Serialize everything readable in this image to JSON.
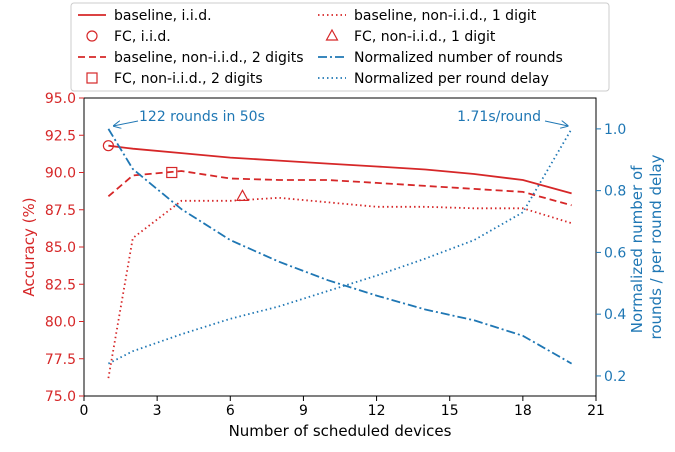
{
  "chart_data": {
    "type": "line",
    "title": "",
    "xlabel": "Number of scheduled devices",
    "ylabel_left": "Accuracy (%)",
    "ylabel_right_lines": [
      "Normalized number of",
      "rounds / per round delay"
    ],
    "xlim": [
      0,
      21
    ],
    "ylim_left": [
      75.0,
      95.0
    ],
    "ylim_right": [
      0.135,
      1.1
    ],
    "x_ticks": [
      0,
      3,
      6,
      9,
      12,
      15,
      18,
      21
    ],
    "x_tick_labels": [
      "0",
      "3",
      "6",
      "9",
      "12",
      "15",
      "18",
      "21"
    ],
    "y_left_ticks": [
      75.0,
      77.5,
      80.0,
      82.5,
      85.0,
      87.5,
      90.0,
      92.5,
      95.0
    ],
    "y_left_tick_labels": [
      "75.0",
      "77.5",
      "80.0",
      "82.5",
      "85.0",
      "87.5",
      "90.0",
      "92.5",
      "95.0"
    ],
    "y_right_ticks": [
      0.2,
      0.4,
      0.6,
      0.8,
      1.0
    ],
    "y_right_tick_labels": [
      "0.2",
      "0.4",
      "0.6",
      "0.8",
      "1.0"
    ],
    "grid": false,
    "legend_position": "top",
    "colors": {
      "accuracy": "#d62728",
      "rounds": "#1f77b4"
    },
    "series": [
      {
        "name": "baseline, i.i.d.",
        "axis": "left",
        "style": "solid",
        "color": "#d62728",
        "x": [
          1,
          2,
          4,
          6,
          8,
          10,
          12,
          14,
          16,
          18,
          20
        ],
        "y": [
          91.8,
          91.6,
          91.3,
          91.0,
          90.8,
          90.6,
          90.4,
          90.2,
          89.9,
          89.5,
          88.6
        ]
      },
      {
        "name": "baseline, non-i.i.d., 2 digits",
        "axis": "left",
        "style": "dashed",
        "color": "#d62728",
        "x": [
          1,
          2,
          4,
          6,
          8,
          10,
          12,
          14,
          16,
          18,
          20
        ],
        "y": [
          88.4,
          89.8,
          90.1,
          89.6,
          89.5,
          89.5,
          89.3,
          89.1,
          88.9,
          88.7,
          87.8
        ]
      },
      {
        "name": "baseline, non-i.i.d., 1 digit",
        "axis": "left",
        "style": "dotted",
        "color": "#d62728",
        "x": [
          1,
          2,
          4,
          6,
          8,
          10,
          12,
          14,
          16,
          18,
          20
        ],
        "y": [
          76.2,
          85.6,
          88.1,
          88.1,
          88.3,
          88.0,
          87.7,
          87.7,
          87.6,
          87.6,
          86.6
        ]
      },
      {
        "name": "Normalized number of rounds",
        "axis": "right",
        "style": "dashdot",
        "color": "#1f77b4",
        "x": [
          1,
          2,
          4,
          6,
          8,
          10,
          12,
          14,
          16,
          18,
          20
        ],
        "y": [
          1.0,
          0.87,
          0.74,
          0.64,
          0.57,
          0.51,
          0.46,
          0.415,
          0.38,
          0.33,
          0.24
        ]
      },
      {
        "name": "Normalized per round delay",
        "axis": "right",
        "style": "dotted",
        "color": "#1f77b4",
        "x": [
          1,
          2,
          4,
          6,
          8,
          10,
          12,
          14,
          16,
          18,
          20
        ],
        "y": [
          0.24,
          0.28,
          0.335,
          0.385,
          0.425,
          0.475,
          0.525,
          0.58,
          0.64,
          0.73,
          1.0
        ]
      }
    ],
    "markers": [
      {
        "name": "FC, i.i.d.",
        "shape": "circle",
        "x": 1.0,
        "y": 91.8
      },
      {
        "name": "FC, non-i.i.d., 2 digits",
        "shape": "square",
        "x": 3.6,
        "y": 90.0
      },
      {
        "name": "FC, non-i.i.d., 1 digit",
        "shape": "triangle",
        "x": 6.5,
        "y": 88.4
      }
    ],
    "annotations": [
      {
        "text": "122 rounds in 50s",
        "x": 1.1,
        "y_right": 1.0,
        "side": "left"
      },
      {
        "text": "1.71s/round",
        "x": 20,
        "y_right": 1.0,
        "side": "right"
      }
    ]
  }
}
